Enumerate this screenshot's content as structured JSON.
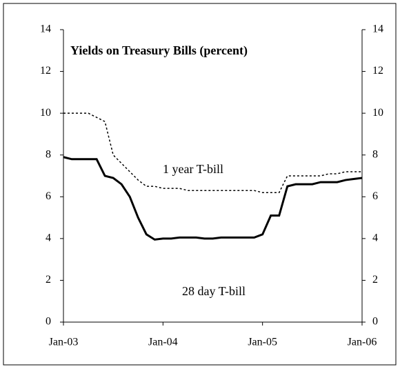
{
  "chart_data": {
    "type": "line",
    "title": "Yields on Treasury Bills (percent)",
    "x": [
      "2003-01",
      "2003-02",
      "2003-03",
      "2003-04",
      "2003-05",
      "2003-06",
      "2003-07",
      "2003-08",
      "2003-09",
      "2003-10",
      "2003-11",
      "2003-12",
      "2004-01",
      "2004-02",
      "2004-03",
      "2004-04",
      "2004-05",
      "2004-06",
      "2004-07",
      "2004-08",
      "2004-09",
      "2004-10",
      "2004-11",
      "2004-12",
      "2005-01",
      "2005-02",
      "2005-03",
      "2005-04",
      "2005-05",
      "2005-06",
      "2005-07",
      "2005-08",
      "2005-09",
      "2005-10",
      "2005-11",
      "2005-12",
      "2006-01"
    ],
    "series": [
      {
        "name": "1 year T-bill",
        "color": "#000000",
        "dash": true,
        "values": [
          10,
          10,
          10,
          10,
          9.8,
          9.6,
          8.0,
          7.6,
          7.2,
          6.8,
          6.5,
          6.5,
          6.4,
          6.4,
          6.4,
          6.3,
          6.3,
          6.3,
          6.3,
          6.3,
          6.3,
          6.3,
          6.3,
          6.3,
          6.2,
          6.2,
          6.2,
          7.0,
          7.0,
          7.0,
          7.0,
          7.0,
          7.1,
          7.1,
          7.2,
          7.2,
          7.2
        ]
      },
      {
        "name": "28 day T-bill",
        "color": "#000000",
        "dash": false,
        "values": [
          7.9,
          7.8,
          7.8,
          7.8,
          7.8,
          7.0,
          6.9,
          6.6,
          6.0,
          5.0,
          4.2,
          3.95,
          4.0,
          4.0,
          4.05,
          4.05,
          4.05,
          4.0,
          4.0,
          4.05,
          4.05,
          4.05,
          4.05,
          4.05,
          4.2,
          5.1,
          5.1,
          6.5,
          6.6,
          6.6,
          6.6,
          6.7,
          6.7,
          6.7,
          6.8,
          6.85,
          6.9
        ]
      }
    ],
    "xticks": [
      {
        "value": "2003-01",
        "label": "Jan-03"
      },
      {
        "value": "2004-01",
        "label": "Jan-04"
      },
      {
        "value": "2005-01",
        "label": "Jan-05"
      },
      {
        "value": "2006-01",
        "label": "Jan-06"
      }
    ],
    "ylim": [
      0,
      14
    ],
    "yticks": [
      0,
      2,
      4,
      6,
      8,
      10,
      12,
      14
    ],
    "y2lim": [
      0,
      14
    ],
    "y2ticks": [
      0,
      2,
      4,
      6,
      8,
      10,
      12,
      14
    ],
    "grid": false
  }
}
